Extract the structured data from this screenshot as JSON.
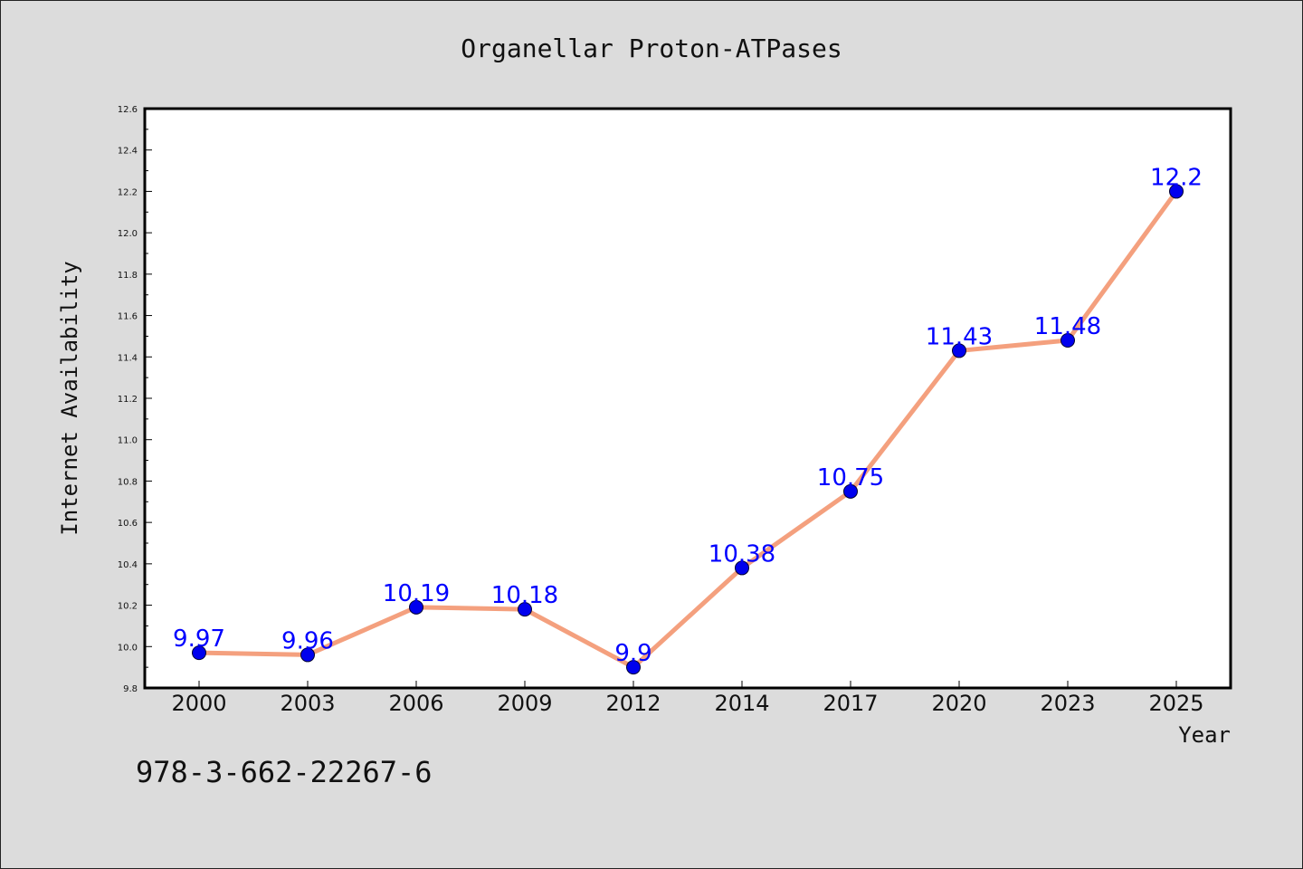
{
  "chart_data": {
    "type": "line",
    "title": "Organellar Proton-ATPases",
    "xlabel": "Year",
    "ylabel": "Internet Availability",
    "categories": [
      "2000",
      "2003",
      "2006",
      "2009",
      "2012",
      "2014",
      "2017",
      "2020",
      "2023",
      "2025"
    ],
    "values": [
      9.97,
      9.96,
      10.19,
      10.18,
      9.9,
      10.38,
      10.75,
      11.43,
      11.48,
      12.2
    ],
    "value_labels": [
      "9.97",
      "9.96",
      "10.19",
      "10.18",
      "9.9",
      "10.38",
      "10.75",
      "11.43",
      "11.48",
      "12.2"
    ],
    "ylim": [
      9.8,
      12.6
    ],
    "yticks": [
      "9.8",
      "10.0",
      "10.2",
      "10.4",
      "10.6",
      "10.8",
      "11.0",
      "11.2",
      "11.4",
      "11.6",
      "11.8",
      "12.0",
      "12.2",
      "12.4",
      "12.6"
    ],
    "grid": false,
    "line_color": "#f4a07e",
    "marker_color": "#0000ee",
    "label_color": "#0000ff"
  },
  "footer": {
    "isbn": "978-3-662-22267-6"
  }
}
